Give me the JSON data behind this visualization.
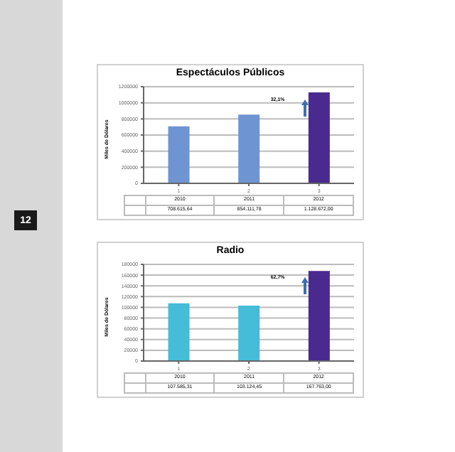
{
  "chart_data": [
    {
      "type": "bar",
      "title": "Espectáculos Públicos",
      "ylabel": "Miles de Dólares",
      "categories": [
        "1",
        "2",
        "3"
      ],
      "values": [
        708615.64,
        854111.78,
        1128672
      ],
      "colors": [
        "#6f94d2",
        "#6f94d2",
        "#4a2a8e"
      ],
      "value_labels": [
        "708.615,64",
        "854.111,78",
        "1.128.672,00"
      ],
      "ylim": [
        0,
        1200000
      ],
      "yticks": [
        0,
        200000,
        400000,
        600000,
        800000,
        1000000,
        1200000
      ],
      "grid": "y",
      "annotations": [
        "2010",
        "2011",
        "2012",
        "32,1%",
        "12"
      ]
    },
    {
      "type": "bar",
      "title": "Radio",
      "ylabel": "Miles de Dólares",
      "categories": [
        "1",
        "2",
        "3"
      ],
      "values": [
        107585.31,
        103124.45,
        167763
      ],
      "colors": [
        "#45bcd8",
        "#45bcd8",
        "#4a2a8e"
      ],
      "value_labels": [
        "107.585,31",
        "103.124,45",
        "167.763,00"
      ],
      "ylim": [
        0,
        180000
      ],
      "yticks": [
        0,
        20000,
        40000,
        60000,
        80000,
        100000,
        120000,
        140000,
        160000,
        180000
      ],
      "grid": "y",
      "annotations": [
        "2010",
        "2011",
        "2012",
        "62,7%"
      ]
    }
  ]
}
